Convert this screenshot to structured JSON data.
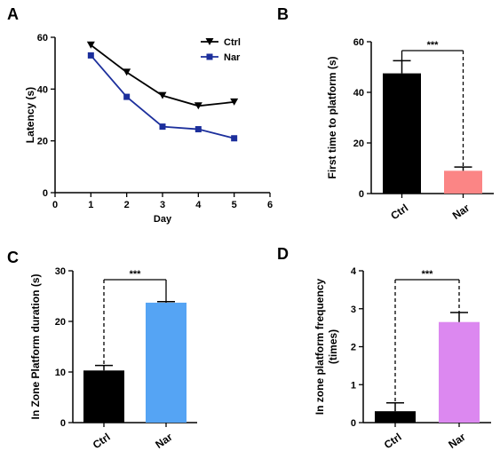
{
  "panels": [
    {
      "letter": "A",
      "chart_data": {
        "type": "line",
        "xlabel": "Day",
        "ylabel": "Latency (s)",
        "xlim": [
          0,
          6
        ],
        "ylim": [
          0,
          60
        ],
        "xticks": [
          0,
          1,
          2,
          3,
          4,
          5,
          6
        ],
        "yticks": [
          0,
          20,
          40,
          60
        ],
        "x": [
          1,
          2,
          3,
          4,
          5
        ],
        "legend_position": "top-right",
        "grid": false,
        "series": [
          {
            "name": "Ctrl",
            "color": "#000000",
            "marker": "triangle-down",
            "values": [
              57,
              46.5,
              37.5,
              33.5,
              35
            ]
          },
          {
            "name": "Nar",
            "color": "#1c2f9c",
            "marker": "square",
            "values": [
              53,
              37,
              25.5,
              24.5,
              21
            ]
          }
        ]
      }
    },
    {
      "letter": "B",
      "chart_data": {
        "type": "bar",
        "ylabel": "First time to platform (s)",
        "ylim": [
          0,
          60
        ],
        "yticks": [
          0,
          20,
          40,
          60
        ],
        "categories": [
          "Ctrl",
          "Nar"
        ],
        "values": [
          47.5,
          9
        ],
        "errors": [
          5,
          1.5
        ],
        "colors": [
          "#000000",
          "#fb8585"
        ],
        "significance": "***",
        "grid": false
      }
    },
    {
      "letter": "C",
      "chart_data": {
        "type": "bar",
        "ylabel": "In Zone Platform duration (s)",
        "ylim": [
          0,
          30
        ],
        "yticks": [
          0,
          10,
          20,
          30
        ],
        "categories": [
          "Ctrl",
          "Nar"
        ],
        "values": [
          10.3,
          23.7
        ],
        "errors": [
          1,
          0.2
        ],
        "colors": [
          "#000000",
          "#55a4f4"
        ],
        "significance": "***",
        "grid": false
      }
    },
    {
      "letter": "D",
      "chart_data": {
        "type": "bar",
        "ylabel": "In zone platform frequency\n(times)",
        "ylim": [
          0,
          4
        ],
        "yticks": [
          0,
          1,
          2,
          3,
          4
        ],
        "categories": [
          "Ctrl",
          "Nar"
        ],
        "values": [
          0.3,
          2.65
        ],
        "errors": [
          0.22,
          0.25
        ],
        "colors": [
          "#000000",
          "#dc88f0"
        ],
        "significance": "***",
        "grid": false
      }
    }
  ]
}
